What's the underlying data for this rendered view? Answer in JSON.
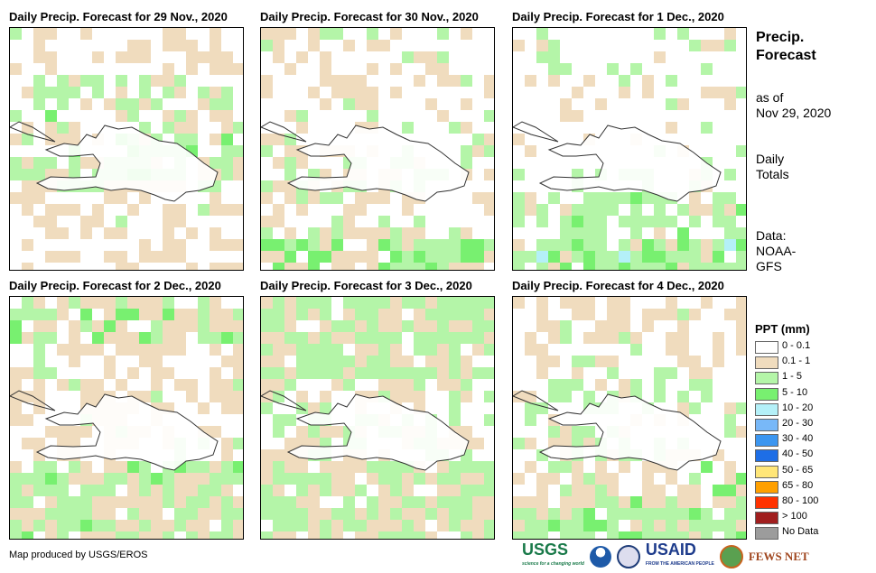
{
  "panels": [
    {
      "title": "Daily Precip. Forecast for 29 Nov., 2020"
    },
    {
      "title": "Daily Precip. Forecast for 30 Nov., 2020"
    },
    {
      "title": "Daily Precip. Forecast for 1 Dec., 2020"
    },
    {
      "title": "Daily Precip. Forecast for 2 Dec., 2020"
    },
    {
      "title": "Daily Precip. Forecast for 3 Dec., 2020"
    },
    {
      "title": "Daily Precip. Forecast for 4 Dec., 2020"
    }
  ],
  "side": {
    "title1": "Precip.",
    "title2": "Forecast",
    "asof1": "as of",
    "asof2": "Nov 29, 2020",
    "daily1": "Daily",
    "daily2": "Totals",
    "data1": "Data:",
    "data2": "NOAA-",
    "data3": "GFS"
  },
  "legend": {
    "title": "PPT (mm)",
    "items": [
      {
        "label": "0 - 0.1",
        "color": "#ffffff"
      },
      {
        "label": "0.1 - 1",
        "color": "#f0dcbe"
      },
      {
        "label": "1 - 5",
        "color": "#b4f5a8"
      },
      {
        "label": "5 - 10",
        "color": "#78f070"
      },
      {
        "label": "10 - 20",
        "color": "#b4f0f8"
      },
      {
        "label": "20 - 30",
        "color": "#78b8f8"
      },
      {
        "label": "30 - 40",
        "color": "#3c96f0"
      },
      {
        "label": "40 - 50",
        "color": "#1e6ee6"
      },
      {
        "label": "50 - 65",
        "color": "#ffe678"
      },
      {
        "label": "65 - 80",
        "color": "#ffa000"
      },
      {
        "label": "80 - 100",
        "color": "#ff3200"
      },
      {
        "label": "> 100",
        "color": "#a01e1e"
      },
      {
        "label": "No Data",
        "color": "#9c9c9c"
      }
    ]
  },
  "credit": "Map produced by USGS/EROS",
  "logos": {
    "usgs": "USGS",
    "usgs_tag": "science for a changing world",
    "usaid": "USAID",
    "usaid_tag": "FROM THE AMERICAN PEOPLE",
    "fews": "FEWS NET"
  }
}
